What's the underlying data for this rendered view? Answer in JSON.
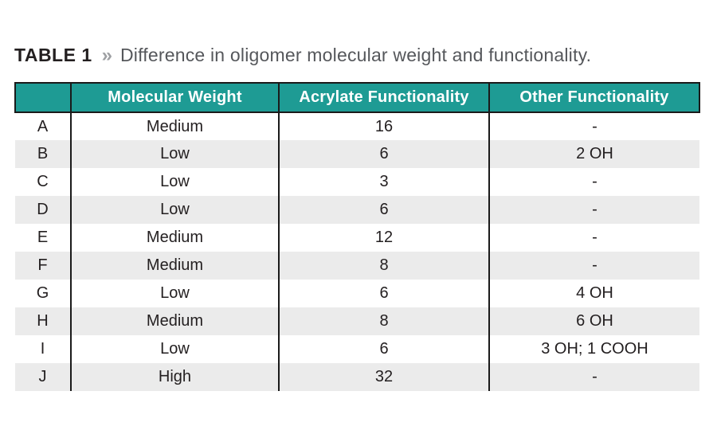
{
  "title": {
    "label": "TABLE 1",
    "separator": "»",
    "text": "Difference in oligomer molecular weight and functionality."
  },
  "colors": {
    "teal": "#1e9b94",
    "stripe": "#ebebeb",
    "border_black": "#1a1a1a",
    "body_text": "#231f20",
    "title_gray": "#55575b",
    "chevron_gray": "#9ea0a3",
    "header_text": "#ffffff"
  },
  "table": {
    "columns": [
      "",
      "Molecular Weight",
      "Acrylate Functionality",
      "Other Functionality"
    ],
    "rows": [
      {
        "label": "A",
        "molecular_weight": "Medium",
        "acrylate_functionality": "16",
        "other_functionality": "-"
      },
      {
        "label": "B",
        "molecular_weight": "Low",
        "acrylate_functionality": "6",
        "other_functionality": "2 OH"
      },
      {
        "label": "C",
        "molecular_weight": "Low",
        "acrylate_functionality": "3",
        "other_functionality": "-"
      },
      {
        "label": "D",
        "molecular_weight": "Low",
        "acrylate_functionality": "6",
        "other_functionality": "-"
      },
      {
        "label": "E",
        "molecular_weight": "Medium",
        "acrylate_functionality": "12",
        "other_functionality": "-"
      },
      {
        "label": "F",
        "molecular_weight": "Medium",
        "acrylate_functionality": "8",
        "other_functionality": "-"
      },
      {
        "label": "G",
        "molecular_weight": "Low",
        "acrylate_functionality": "6",
        "other_functionality": "4 OH"
      },
      {
        "label": "H",
        "molecular_weight": "Medium",
        "acrylate_functionality": "8",
        "other_functionality": "6 OH"
      },
      {
        "label": "I",
        "molecular_weight": "Low",
        "acrylate_functionality": "6",
        "other_functionality": "3 OH; 1 COOH"
      },
      {
        "label": "J",
        "molecular_weight": "High",
        "acrylate_functionality": "32",
        "other_functionality": "-"
      }
    ]
  }
}
